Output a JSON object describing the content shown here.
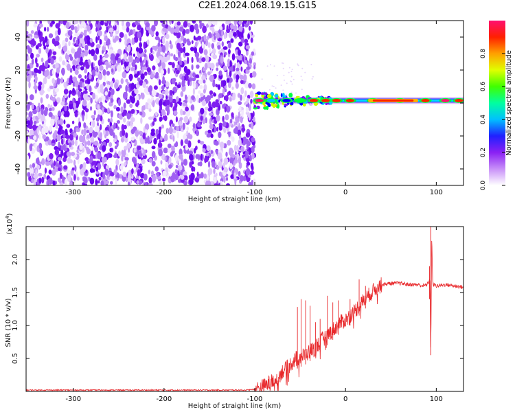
{
  "figure": {
    "title": "C2E1.2024.068.19.15.G15"
  },
  "colors": {
    "spectrogram_purple": "#7a1af0",
    "snr_line": "#e8282b",
    "colorbar_stops": [
      "#ffffff",
      "#c090f8",
      "#6a00f0",
      "#0000ff",
      "#00ffff",
      "#00ff00",
      "#ffff00",
      "#ff8000",
      "#ff0000",
      "#ff0080"
    ]
  },
  "chart_data": [
    {
      "type": "heatmap",
      "xlabel": "Height of straight line (km)",
      "ylabel": "Frequency (Hz)",
      "xlim": [
        -352,
        130
      ],
      "ylim": [
        -50,
        50
      ],
      "xticks": [
        -300,
        -200,
        -100,
        0,
        100
      ],
      "yticks": [
        -40,
        -20,
        0,
        20,
        40
      ],
      "noise_region": {
        "x_range": [
          -352,
          -100
        ],
        "freq_range": [
          -50,
          50
        ],
        "amplitude": 0.05
      },
      "carrier": {
        "freq_hz": 1.5,
        "segments": [
          {
            "x": -95,
            "amp": 0.95
          },
          {
            "x": -82,
            "amp": 0.45
          },
          {
            "x": -65,
            "amp": 0.35
          },
          {
            "x": -50,
            "amp": 0.6
          },
          {
            "x": -35,
            "amp": 0.85
          },
          {
            "x": -22,
            "amp": 0.9
          },
          {
            "x": -10,
            "amp": 0.9
          },
          {
            "x": 5,
            "amp": 0.9
          },
          {
            "x": 30,
            "amp": 0.9
          },
          {
            "x": 60,
            "amp": 0.95
          },
          {
            "x": 88,
            "amp": 0.9
          },
          {
            "x": 110,
            "amp": 0.95
          },
          {
            "x": 125,
            "amp": 0.85
          }
        ]
      },
      "colorbar": {
        "label": "Normalized spectral amplitude",
        "range": [
          0,
          1
        ],
        "ticks": [
          0.0,
          0.2,
          0.4,
          0.6,
          0.8
        ]
      }
    },
    {
      "type": "line",
      "xlabel": "Height of straight line (km)",
      "ylabel": "SNR (10 * v/v)",
      "ylabel_multiplier": "(x10^4)",
      "xlim": [
        -352,
        130
      ],
      "ylim": [
        0,
        2.5
      ],
      "xticks": [
        -300,
        -200,
        -100,
        0,
        100
      ],
      "yticks": [
        0.5,
        1.0,
        1.5,
        2.0
      ],
      "series": [
        {
          "x": [
            -352,
            -300,
            -250,
            -200,
            -150,
            -110,
            -100,
            -95,
            -90,
            -85,
            -80,
            -75,
            -70,
            -65,
            -60,
            -55,
            -50,
            -45,
            -40,
            -35,
            -30,
            -25,
            -20,
            -15,
            -10,
            -5,
            0,
            5,
            10,
            15,
            20,
            25,
            30,
            35,
            40,
            50,
            60,
            70,
            80,
            85,
            90,
            93,
            94,
            95,
            96,
            97,
            100,
            110,
            120,
            130
          ],
          "y": [
            0.02,
            0.02,
            0.02,
            0.02,
            0.02,
            0.02,
            0.03,
            0.05,
            0.08,
            0.12,
            0.15,
            0.2,
            0.3,
            0.35,
            0.42,
            0.5,
            0.52,
            0.55,
            0.6,
            0.65,
            0.72,
            0.8,
            0.85,
            0.92,
            0.98,
            1.05,
            1.08,
            1.15,
            1.22,
            1.3,
            1.38,
            1.45,
            1.52,
            1.58,
            1.62,
            1.64,
            1.64,
            1.62,
            1.62,
            1.6,
            1.62,
            1.7,
            0.55,
            2.4,
            1.65,
            1.62,
            1.6,
            1.62,
            1.6,
            1.58
          ],
          "spikes": [
            {
              "x": -53,
              "y": 1.28
            },
            {
              "x": -49,
              "y": 1.4
            },
            {
              "x": -44,
              "y": 1.38
            },
            {
              "x": -39,
              "y": 1.3
            },
            {
              "x": -33,
              "y": 1.05
            },
            {
              "x": -28,
              "y": 1.1
            },
            {
              "x": -20,
              "y": 1.45
            },
            {
              "x": -14,
              "y": 1.35
            },
            {
              "x": -8,
              "y": 1.38
            },
            {
              "x": 5,
              "y": 1.4
            },
            {
              "x": 15,
              "y": 1.7
            },
            {
              "x": 22,
              "y": 1.6
            }
          ]
        }
      ]
    }
  ]
}
